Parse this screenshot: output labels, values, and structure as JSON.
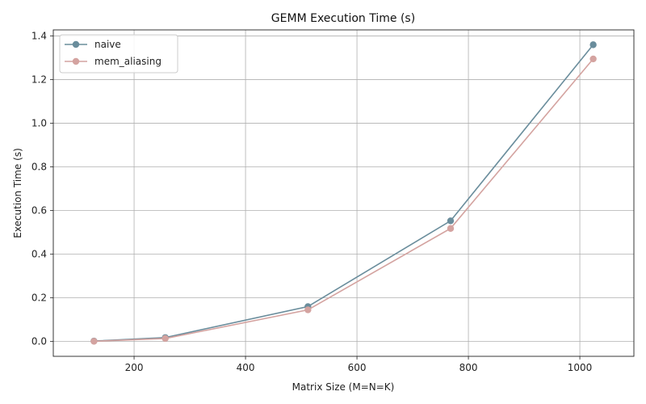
{
  "chart_data": {
    "type": "line",
    "title": "GEMM Execution Time (s)",
    "xlabel": "Matrix Size (M=N=K)",
    "ylabel": "Execution Time (s)",
    "xlim": [
      55,
      1097
    ],
    "ylim": [
      -0.068,
      1.428
    ],
    "xticks": [
      200,
      400,
      600,
      800,
      1000
    ],
    "yticks": [
      0.0,
      0.2,
      0.4,
      0.6,
      0.8,
      1.0,
      1.2,
      1.4
    ],
    "xtick_labels": [
      "200",
      "400",
      "600",
      "800",
      "1000"
    ],
    "ytick_labels": [
      "0.0",
      "0.2",
      "0.4",
      "0.6",
      "0.8",
      "1.0",
      "1.2",
      "1.4"
    ],
    "grid": true,
    "legend_position": "top-left",
    "x": [
      128,
      256,
      512,
      768,
      1024
    ],
    "series": [
      {
        "name": "naive",
        "color": "#6a8d9c",
        "values": [
          0.002,
          0.018,
          0.16,
          0.553,
          1.36
        ]
      },
      {
        "name": "mem_aliasing",
        "color": "#d4a3a0",
        "values": [
          0.001,
          0.014,
          0.145,
          0.518,
          1.295
        ]
      }
    ]
  }
}
